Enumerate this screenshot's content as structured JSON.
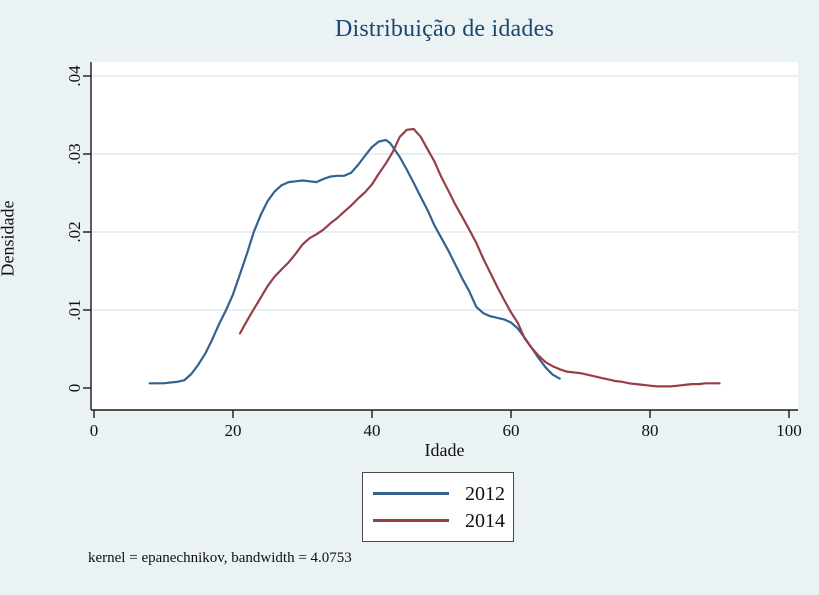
{
  "title": "Distribuição de idades",
  "note": "kernel = epanechnikov, bandwidth = 4.0753",
  "colors": {
    "figure_background": "#eaf2f3",
    "plot_background": "#ffffff",
    "gridline": "#dfeaed",
    "axis": "#1a1a1a",
    "title_text": "#1a476f",
    "series_2012": "#35618f",
    "series_2014": "#963f45"
  },
  "chart_data": {
    "type": "line",
    "title": "Distribuição de idades",
    "xlabel": "Idade",
    "ylabel": "Densidade",
    "xlim": [
      0,
      100
    ],
    "ylim": [
      0,
      0.04
    ],
    "x_ticks": [
      0,
      20,
      40,
      60,
      80,
      100
    ],
    "x_tick_labels": [
      "0",
      "20",
      "40",
      "60",
      "80",
      "100"
    ],
    "y_ticks": [
      0,
      0.01,
      0.02,
      0.03,
      0.04
    ],
    "y_tick_labels": [
      "0",
      ".01",
      ".02",
      ".03",
      ".04"
    ],
    "grid": true,
    "legend_position": "below-plot-center",
    "annotation": "kernel = epanechnikov, bandwidth = 4.0753",
    "series": [
      {
        "name": "2012",
        "color": "#35618f",
        "points": [
          [
            8,
            0.0006
          ],
          [
            9,
            0.0006
          ],
          [
            10,
            0.0006
          ],
          [
            11,
            0.0007
          ],
          [
            12,
            0.0008
          ],
          [
            13,
            0.001
          ],
          [
            14,
            0.0018
          ],
          [
            15,
            0.003
          ],
          [
            16,
            0.0044
          ],
          [
            17,
            0.0062
          ],
          [
            18,
            0.0082
          ],
          [
            19,
            0.01
          ],
          [
            20,
            0.012
          ],
          [
            21,
            0.0146
          ],
          [
            22,
            0.0172
          ],
          [
            23,
            0.02
          ],
          [
            24,
            0.0222
          ],
          [
            25,
            0.024
          ],
          [
            26,
            0.0252
          ],
          [
            27,
            0.026
          ],
          [
            28,
            0.0264
          ],
          [
            29,
            0.0265
          ],
          [
            30,
            0.0266
          ],
          [
            31,
            0.0265
          ],
          [
            32,
            0.0264
          ],
          [
            33,
            0.0268
          ],
          [
            34,
            0.0271
          ],
          [
            35,
            0.0272
          ],
          [
            36,
            0.0272
          ],
          [
            37,
            0.0276
          ],
          [
            38,
            0.0286
          ],
          [
            39,
            0.0298
          ],
          [
            40,
            0.0309
          ],
          [
            41,
            0.0316
          ],
          [
            42,
            0.0318
          ],
          [
            42.6,
            0.0314
          ],
          [
            43,
            0.0309
          ],
          [
            44,
            0.0296
          ],
          [
            45,
            0.028
          ],
          [
            46,
            0.0263
          ],
          [
            47,
            0.0245
          ],
          [
            48,
            0.0228
          ],
          [
            49,
            0.0208
          ],
          [
            50,
            0.0192
          ],
          [
            51,
            0.0176
          ],
          [
            52,
            0.0158
          ],
          [
            53,
            0.014
          ],
          [
            54,
            0.0124
          ],
          [
            55,
            0.0104
          ],
          [
            56,
            0.0096
          ],
          [
            57,
            0.0092
          ],
          [
            58,
            0.009
          ],
          [
            59,
            0.0088
          ],
          [
            60,
            0.0084
          ],
          [
            61,
            0.0076
          ],
          [
            62,
            0.0064
          ],
          [
            63,
            0.0051
          ],
          [
            64,
            0.0038
          ],
          [
            65,
            0.0026
          ],
          [
            66,
            0.0017
          ],
          [
            67,
            0.0012
          ]
        ]
      },
      {
        "name": "2014",
        "color": "#963f45",
        "points": [
          [
            21,
            0.007
          ],
          [
            22,
            0.0086
          ],
          [
            23,
            0.0101
          ],
          [
            24,
            0.0116
          ],
          [
            25,
            0.0131
          ],
          [
            26,
            0.0143
          ],
          [
            27,
            0.0152
          ],
          [
            28,
            0.0161
          ],
          [
            29,
            0.0172
          ],
          [
            30,
            0.0184
          ],
          [
            31,
            0.0192
          ],
          [
            32,
            0.0197
          ],
          [
            33,
            0.0203
          ],
          [
            34,
            0.0211
          ],
          [
            35,
            0.0218
          ],
          [
            36,
            0.0226
          ],
          [
            37,
            0.0234
          ],
          [
            38,
            0.0243
          ],
          [
            39,
            0.0251
          ],
          [
            40,
            0.0261
          ],
          [
            41,
            0.0275
          ],
          [
            42,
            0.0288
          ],
          [
            43,
            0.0303
          ],
          [
            44,
            0.0322
          ],
          [
            45,
            0.0331
          ],
          [
            46,
            0.0332
          ],
          [
            47,
            0.0322
          ],
          [
            48,
            0.0306
          ],
          [
            49,
            0.029
          ],
          [
            50,
            0.027
          ],
          [
            51,
            0.0253
          ],
          [
            52,
            0.0235
          ],
          [
            53,
            0.0219
          ],
          [
            54,
            0.0203
          ],
          [
            55,
            0.0186
          ],
          [
            56,
            0.0166
          ],
          [
            57,
            0.0148
          ],
          [
            58,
            0.013
          ],
          [
            59,
            0.0113
          ],
          [
            60,
            0.0097
          ],
          [
            61,
            0.0083
          ],
          [
            62,
            0.0063
          ],
          [
            63,
            0.0051
          ],
          [
            64,
            0.0041
          ],
          [
            65,
            0.0033
          ],
          [
            66,
            0.0028
          ],
          [
            67,
            0.0024
          ],
          [
            68,
            0.0021
          ],
          [
            69,
            0.002
          ],
          [
            70,
            0.0019
          ],
          [
            71,
            0.0017
          ],
          [
            72,
            0.0015
          ],
          [
            73,
            0.0013
          ],
          [
            74,
            0.0011
          ],
          [
            75,
            0.0009
          ],
          [
            76,
            0.0008
          ],
          [
            77,
            0.0006
          ],
          [
            78,
            0.0005
          ],
          [
            79,
            0.0004
          ],
          [
            80,
            0.0003
          ],
          [
            81,
            0.0002
          ],
          [
            82,
            0.0002
          ],
          [
            83,
            0.0002
          ],
          [
            84,
            0.0003
          ],
          [
            85,
            0.0004
          ],
          [
            86,
            0.0005
          ],
          [
            87,
            0.0005
          ],
          [
            88,
            0.0006
          ],
          [
            89,
            0.0006
          ],
          [
            90,
            0.0006
          ]
        ]
      }
    ]
  }
}
